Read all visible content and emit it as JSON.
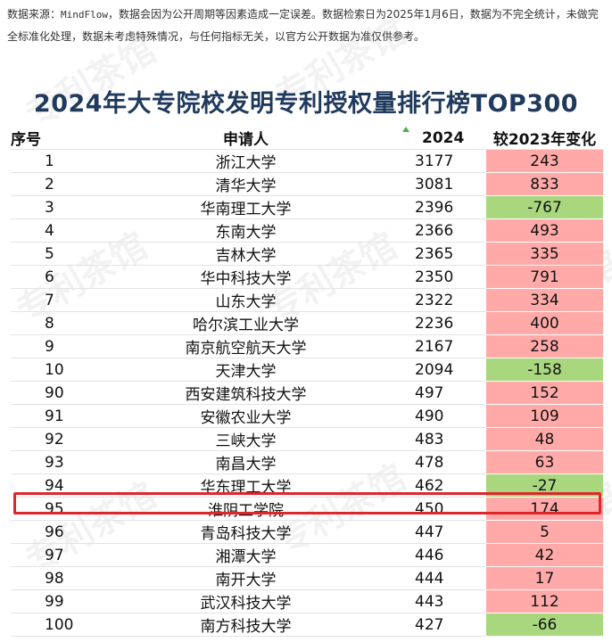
{
  "source_note": {
    "prefix": "数据来源：",
    "source": "MindFlow",
    "text": "，数据会因为公开周期等因素造成一定误差。数据检索日为2025年1月6日，数据为不完全统计，未做完全标准化处理，数据未考虑特殊情况，与任何指标无关，以官方公开数据为准仅供参考。"
  },
  "watermark_text": "专利茶馆",
  "colors": {
    "positive": "#ffaaa8",
    "negative": "#a8d77e",
    "highlight": "#e0262b",
    "title": "#1f3a5c"
  },
  "chart_data": {
    "type": "table",
    "title": "2024年大专院校发明专利授权量排行榜TOP300",
    "columns": [
      "序号",
      "申请人",
      "2024",
      "较2023年变化"
    ],
    "highlight_rank": 95,
    "rows": [
      {
        "rank": "1",
        "name": "浙江大学",
        "count": "3177",
        "change": "243",
        "sign": "positive"
      },
      {
        "rank": "2",
        "name": "清华大学",
        "count": "3081",
        "change": "833",
        "sign": "positive"
      },
      {
        "rank": "3",
        "name": "华南理工大学",
        "count": "2396",
        "change": "-767",
        "sign": "negative"
      },
      {
        "rank": "4",
        "name": "东南大学",
        "count": "2366",
        "change": "493",
        "sign": "positive"
      },
      {
        "rank": "5",
        "name": "吉林大学",
        "count": "2365",
        "change": "335",
        "sign": "positive"
      },
      {
        "rank": "6",
        "name": "华中科技大学",
        "count": "2350",
        "change": "791",
        "sign": "positive"
      },
      {
        "rank": "7",
        "name": "山东大学",
        "count": "2322",
        "change": "334",
        "sign": "positive"
      },
      {
        "rank": "8",
        "name": "哈尔滨工业大学",
        "count": "2236",
        "change": "400",
        "sign": "positive"
      },
      {
        "rank": "9",
        "name": "南京航空航天大学",
        "count": "2167",
        "change": "258",
        "sign": "positive"
      },
      {
        "rank": "10",
        "name": "天津大学",
        "count": "2094",
        "change": "-158",
        "sign": "negative"
      },
      {
        "rank": "90",
        "name": "西安建筑科技大学",
        "count": "497",
        "change": "152",
        "sign": "positive"
      },
      {
        "rank": "91",
        "name": "安徽农业大学",
        "count": "490",
        "change": "109",
        "sign": "positive"
      },
      {
        "rank": "92",
        "name": "三峡大学",
        "count": "483",
        "change": "48",
        "sign": "positive"
      },
      {
        "rank": "93",
        "name": "南昌大学",
        "count": "478",
        "change": "63",
        "sign": "positive"
      },
      {
        "rank": "94",
        "name": "华东理工大学",
        "count": "462",
        "change": "-27",
        "sign": "negative"
      },
      {
        "rank": "95",
        "name": "淮阴工学院",
        "count": "450",
        "change": "174",
        "sign": "positive"
      },
      {
        "rank": "96",
        "name": "青岛科技大学",
        "count": "447",
        "change": "5",
        "sign": "positive"
      },
      {
        "rank": "97",
        "name": "湘潭大学",
        "count": "446",
        "change": "42",
        "sign": "positive"
      },
      {
        "rank": "98",
        "name": "南开大学",
        "count": "444",
        "change": "17",
        "sign": "positive"
      },
      {
        "rank": "99",
        "name": "武汉科技大学",
        "count": "443",
        "change": "112",
        "sign": "positive"
      },
      {
        "rank": "100",
        "name": "南方科技大学",
        "count": "427",
        "change": "-66",
        "sign": "negative"
      }
    ]
  }
}
